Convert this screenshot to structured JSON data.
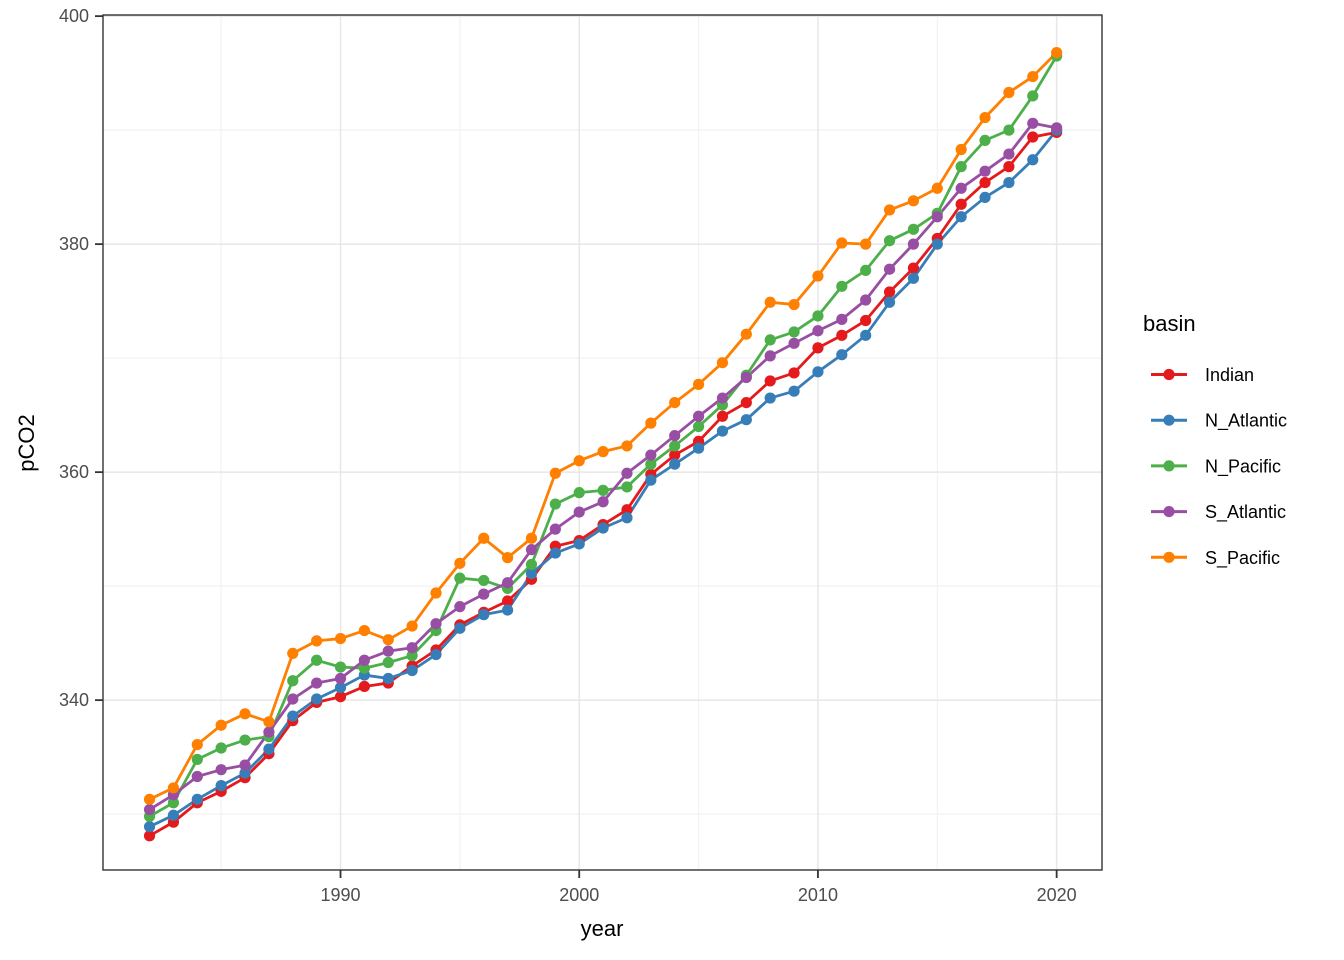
{
  "chart_data": {
    "type": "line",
    "title": "",
    "xlabel": "year",
    "ylabel": "pCO2",
    "x": [
      1982,
      1983,
      1984,
      1985,
      1986,
      1987,
      1988,
      1989,
      1990,
      1991,
      1992,
      1993,
      1994,
      1995,
      1996,
      1997,
      1998,
      1999,
      2000,
      2001,
      2002,
      2003,
      2004,
      2005,
      2006,
      2007,
      2008,
      2009,
      2010,
      2011,
      2012,
      2013,
      2014,
      2015,
      2016,
      2017,
      2018,
      2019,
      2020
    ],
    "series": [
      {
        "name": "Indian",
        "color": "#E41A1C",
        "values": [
          328.1,
          329.3,
          331.0,
          332.0,
          333.2,
          335.3,
          338.2,
          339.8,
          340.3,
          341.2,
          341.5,
          343.0,
          344.4,
          346.6,
          347.7,
          348.7,
          350.6,
          353.5,
          354.0,
          355.4,
          356.7,
          359.8,
          361.5,
          362.7,
          364.9,
          366.1,
          368.0,
          368.7,
          370.9,
          372.0,
          373.3,
          375.8,
          377.9,
          380.5,
          383.5,
          385.4,
          386.8,
          389.4,
          389.8
        ]
      },
      {
        "name": "N_Atlantic",
        "color": "#377EB8",
        "values": [
          328.9,
          329.9,
          331.3,
          332.5,
          333.6,
          335.7,
          338.6,
          340.1,
          341.1,
          342.2,
          341.9,
          342.6,
          344.0,
          346.3,
          347.5,
          347.9,
          351.1,
          352.9,
          353.7,
          355.1,
          356.0,
          359.3,
          360.7,
          362.1,
          363.6,
          364.6,
          366.5,
          367.1,
          368.8,
          370.3,
          372.0,
          374.9,
          377.0,
          380.0,
          382.4,
          384.1,
          385.4,
          387.4,
          390.0
        ]
      },
      {
        "name": "N_Pacific",
        "color": "#4DAF4A",
        "values": [
          329.8,
          331.0,
          334.8,
          335.8,
          336.5,
          336.8,
          341.7,
          343.5,
          342.9,
          342.8,
          343.3,
          343.9,
          346.1,
          350.7,
          350.5,
          349.8,
          351.9,
          357.2,
          358.2,
          358.4,
          358.7,
          360.7,
          362.3,
          364.0,
          365.9,
          368.5,
          371.6,
          372.3,
          373.7,
          376.3,
          377.7,
          380.3,
          381.3,
          382.7,
          386.8,
          389.1,
          390.0,
          393.0,
          396.5
        ]
      },
      {
        "name": "S_Atlantic",
        "color": "#984EA3",
        "values": [
          330.4,
          331.7,
          333.3,
          333.9,
          334.3,
          337.2,
          340.1,
          341.5,
          341.9,
          343.5,
          344.3,
          344.6,
          346.7,
          348.2,
          349.3,
          350.3,
          353.2,
          355.0,
          356.5,
          357.4,
          359.9,
          361.5,
          363.2,
          364.9,
          366.5,
          368.3,
          370.2,
          371.3,
          372.4,
          373.4,
          375.1,
          377.8,
          380.0,
          382.4,
          384.9,
          386.4,
          387.9,
          390.6,
          390.2
        ]
      },
      {
        "name": "S_Pacific",
        "color": "#FF7F00",
        "values": [
          331.3,
          332.3,
          336.1,
          337.8,
          338.8,
          338.1,
          344.1,
          345.2,
          345.4,
          346.1,
          345.3,
          346.5,
          349.4,
          352.0,
          354.2,
          352.5,
          354.2,
          359.9,
          361.0,
          361.8,
          362.3,
          364.3,
          366.1,
          367.7,
          369.6,
          372.1,
          374.9,
          374.7,
          377.2,
          380.1,
          380.0,
          383.0,
          383.8,
          384.9,
          388.3,
          391.1,
          393.3,
          394.7,
          396.8
        ]
      }
    ],
    "x_ticks": [
      1990,
      2000,
      2010,
      2020
    ],
    "y_ticks": [
      340,
      360,
      380,
      400
    ],
    "x_minor": [
      1985,
      1995,
      2005,
      2015
    ],
    "y_minor": [
      330,
      350,
      370,
      390
    ],
    "xlim": [
      1980.05,
      2021.9
    ],
    "ylim": [
      325.1,
      400.1
    ],
    "grid": true,
    "legend": {
      "title": "basin",
      "position": "right"
    }
  },
  "style": {
    "panel_border": "#333333",
    "grid_major": "#e7e7e7",
    "grid_minor": "#f2f2f2",
    "tick_color": "#333333",
    "tick_text": "#4d4d4d",
    "background": "#ffffff"
  }
}
